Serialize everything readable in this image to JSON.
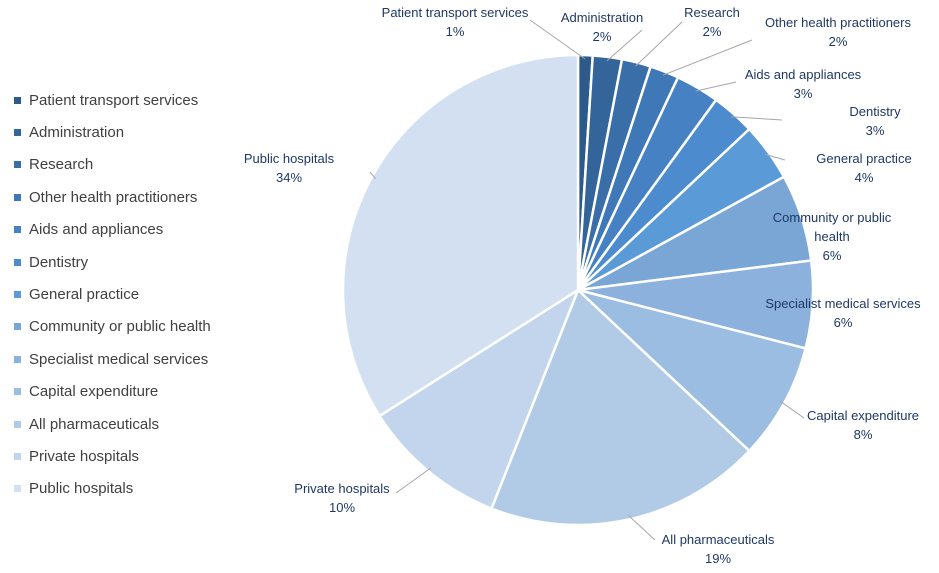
{
  "chart_data": {
    "type": "pie",
    "title": "",
    "legend_position": "left",
    "slices": [
      {
        "name": "Patient transport services",
        "value": 1,
        "label": "1%",
        "color": "#2d5a8a"
      },
      {
        "name": "Administration",
        "value": 2,
        "label": "2%",
        "color": "#33649a"
      },
      {
        "name": "Research",
        "value": 2,
        "label": "2%",
        "color": "#396ea8"
      },
      {
        "name": "Other health practitioners",
        "value": 2,
        "label": "2%",
        "color": "#3f78b6"
      },
      {
        "name": "Aids and appliances",
        "value": 3,
        "label": "3%",
        "color": "#4682c3"
      },
      {
        "name": "Dentistry",
        "value": 3,
        "label": "3%",
        "color": "#4c8bcd"
      },
      {
        "name": "General practice",
        "value": 4,
        "label": "4%",
        "color": "#5a9ad6"
      },
      {
        "name": "Community or public health",
        "value": 6,
        "label": "6%",
        "color": "#7aa6d6"
      },
      {
        "name": "Specialist medical services",
        "value": 6,
        "label": "6%",
        "color": "#8bb1dc"
      },
      {
        "name": "Capital expenditure",
        "value": 8,
        "label": "8%",
        "color": "#9bbde1"
      },
      {
        "name": "All pharmaceuticals",
        "value": 19,
        "label": "19%",
        "color": "#b1cbe7"
      },
      {
        "name": "Private hospitals",
        "value": 10,
        "label": "10%",
        "color": "#c2d5ec"
      },
      {
        "name": "Public hospitals",
        "value": 34,
        "label": "34%",
        "color": "#d2e0f1"
      }
    ]
  }
}
